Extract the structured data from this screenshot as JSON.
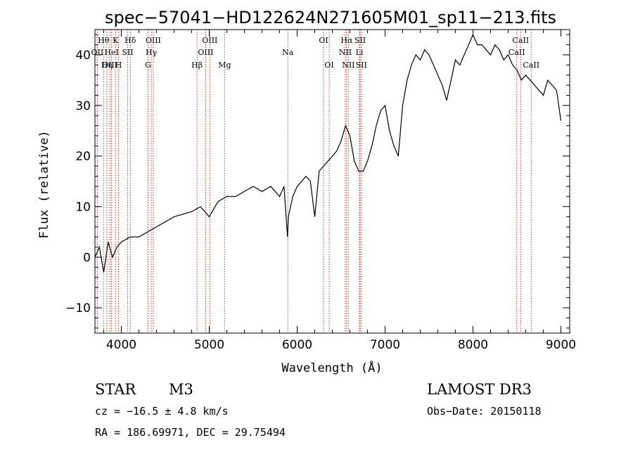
{
  "chart_data": {
    "type": "line",
    "title": "spec−57041−HD122624N271605M01_sp11−213.fits",
    "xlabel": "Wavelength (Å)",
    "ylabel": "Flux (relative)",
    "xlim": [
      3700,
      9100
    ],
    "ylim": [
      -15,
      45
    ],
    "xticks": [
      4000,
      5000,
      6000,
      7000,
      8000,
      9000
    ],
    "yticks": [
      -10,
      0,
      10,
      20,
      30,
      40
    ],
    "ytick_labels": [
      "−10",
      "0",
      "10",
      "20",
      "30",
      "40"
    ],
    "series": [
      {
        "name": "flux",
        "x": [
          3700,
          3750,
          3800,
          3850,
          3900,
          3950,
          4000,
          4100,
          4200,
          4300,
          4400,
          4500,
          4600,
          4700,
          4800,
          4900,
          5000,
          5100,
          5200,
          5300,
          5400,
          5500,
          5600,
          5700,
          5800,
          5850,
          5890,
          5900,
          5950,
          6000,
          6050,
          6100,
          6150,
          6200,
          6250,
          6300,
          6350,
          6400,
          6450,
          6500,
          6550,
          6600,
          6650,
          6700,
          6750,
          6800,
          6850,
          6900,
          6950,
          7000,
          7050,
          7100,
          7150,
          7200,
          7250,
          7300,
          7350,
          7400,
          7450,
          7500,
          7550,
          7600,
          7650,
          7700,
          7750,
          7800,
          7850,
          7900,
          7950,
          8000,
          8050,
          8100,
          8150,
          8200,
          8250,
          8300,
          8350,
          8400,
          8450,
          8500,
          8550,
          8600,
          8650,
          8700,
          8750,
          8800,
          8850,
          8900,
          8950,
          9000
        ],
        "y": [
          0,
          2,
          -3,
          3,
          0,
          2,
          3,
          4,
          4,
          5,
          6,
          7,
          8,
          8.5,
          9,
          10,
          8,
          11,
          12,
          12,
          13,
          14,
          13,
          14,
          12,
          14,
          4,
          8,
          12,
          14,
          15,
          16,
          15,
          8,
          17,
          18,
          19,
          20,
          21,
          23,
          26,
          24,
          19,
          17,
          17,
          19,
          22,
          26,
          29,
          30,
          25,
          22,
          20,
          30,
          35,
          38,
          40,
          39,
          41,
          40,
          38,
          36,
          34,
          31,
          35,
          39,
          38,
          40,
          42,
          44,
          42,
          42,
          41,
          40,
          42,
          41,
          39,
          40,
          38,
          37,
          35,
          36,
          35,
          34,
          33,
          32,
          35,
          34,
          33,
          27
        ]
      }
    ],
    "spectral_lines": [
      {
        "label": "OII",
        "wavelength": 3727,
        "row": 2
      },
      {
        "label": "Hθ",
        "wavelength": 3798,
        "row": 1
      },
      {
        "label": "OIII",
        "wavelength": 3869,
        "row": 3
      },
      {
        "label": "Hη",
        "wavelength": 3835,
        "row": 3
      },
      {
        "label": "HeI",
        "wavelength": 3889,
        "row": 2
      },
      {
        "label": "K",
        "wavelength": 3934,
        "row": 1
      },
      {
        "label": "H",
        "wavelength": 3968,
        "row": 3
      },
      {
        "label": "SII",
        "wavelength": 4072,
        "row": 2
      },
      {
        "label": "Hδ",
        "wavelength": 4102,
        "row": 1
      },
      {
        "label": "G",
        "wavelength": 4304,
        "row": 3
      },
      {
        "label": "Hγ",
        "wavelength": 4341,
        "row": 2
      },
      {
        "label": "OIII",
        "wavelength": 4363,
        "row": 1
      },
      {
        "label": "Hβ",
        "wavelength": 4861,
        "row": 3
      },
      {
        "label": "OIII",
        "wavelength": 4959,
        "row": 2
      },
      {
        "label": "OIII",
        "wavelength": 5007,
        "row": 1
      },
      {
        "label": "Mg",
        "wavelength": 5175,
        "row": 3
      },
      {
        "label": "Na",
        "wavelength": 5894,
        "row": 2
      },
      {
        "label": "OI",
        "wavelength": 6300,
        "row": 1
      },
      {
        "label": "OI",
        "wavelength": 6364,
        "row": 3
      },
      {
        "label": "NII",
        "wavelength": 6548,
        "row": 2
      },
      {
        "label": "Hα",
        "wavelength": 6563,
        "row": 1
      },
      {
        "label": "NII",
        "wavelength": 6583,
        "row": 3
      },
      {
        "label": "Li",
        "wavelength": 6708,
        "row": 2
      },
      {
        "label": "SII",
        "wavelength": 6716,
        "row": 1
      },
      {
        "label": "SII",
        "wavelength": 6731,
        "row": 3
      },
      {
        "label": "CaII",
        "wavelength": 8498,
        "row": 2
      },
      {
        "label": "CaII",
        "wavelength": 8542,
        "row": 1
      },
      {
        "label": "CaII",
        "wavelength": 8662,
        "row": 3
      }
    ]
  },
  "info": {
    "object_class": "STAR",
    "subclass": "M3",
    "survey": "LAMOST DR3",
    "redshift": "cz = −16.5 ± 4.8 km/s",
    "obs_date": "Obs−Date: 20150118",
    "coords": "RA = 186.69971, DEC =  29.75494"
  }
}
